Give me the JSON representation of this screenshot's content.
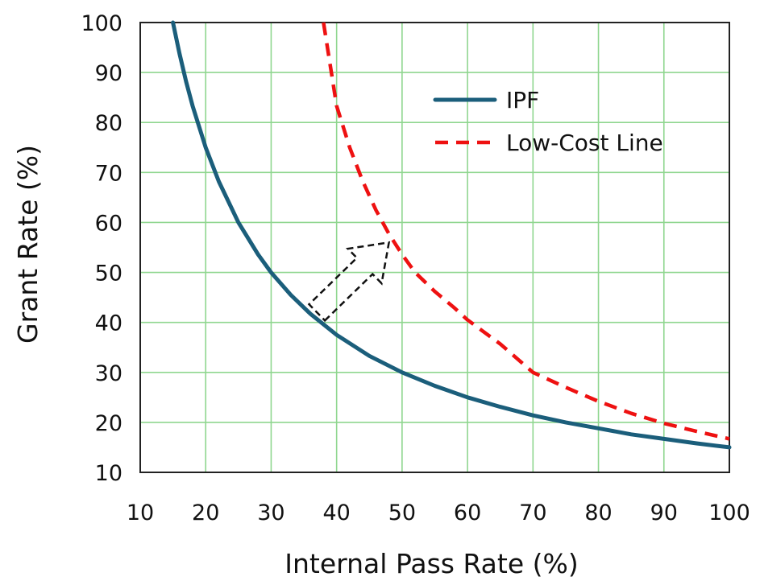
{
  "chart_data": {
    "type": "line",
    "title": "",
    "xlabel": "Internal Pass Rate (%)",
    "ylabel": "Grant Rate (%)",
    "xlim": [
      10,
      100
    ],
    "ylim": [
      10,
      100
    ],
    "x_ticks": [
      "10",
      "20",
      "30",
      "40",
      "50",
      "60",
      "70",
      "80",
      "90",
      "100"
    ],
    "y_ticks": [
      "10",
      "20",
      "30",
      "40",
      "50",
      "60",
      "70",
      "80",
      "90",
      "100"
    ],
    "grid": true,
    "legend_position": "top-right",
    "series": [
      {
        "name": "IPF",
        "color": "#1b5e7b",
        "style": "solid",
        "x": [
          15,
          16,
          17,
          18,
          20,
          22,
          25,
          28,
          30,
          33,
          36,
          40,
          45,
          50,
          55,
          60,
          65,
          70,
          75,
          80,
          85,
          90,
          95,
          100
        ],
        "y": [
          100,
          93.8,
          88.2,
          83.3,
          75,
          68.2,
          60,
          53.6,
          50,
          45.5,
          41.7,
          37.5,
          33.3,
          30,
          27.3,
          25,
          23.1,
          21.4,
          20,
          18.8,
          17.6,
          16.7,
          15.8,
          15
        ]
      },
      {
        "name": "Low-Cost Line",
        "color": "#ee1111",
        "style": "dashed",
        "x": [
          38,
          40,
          42,
          44,
          46,
          48,
          50,
          52,
          55,
          58,
          60,
          65,
          70,
          75,
          80,
          85,
          90,
          95,
          100
        ],
        "y": [
          100,
          83.3,
          75,
          68.2,
          62.5,
          57.7,
          53.6,
          50,
          46.2,
          42.9,
          40.5,
          35.7,
          30,
          27,
          24.2,
          21.8,
          19.8,
          18.2,
          16.7
        ]
      }
    ],
    "annotations": [
      {
        "type": "arrow",
        "style": "dashed-outline",
        "from": [
          37,
          42
        ],
        "to": [
          48,
          56
        ]
      }
    ]
  }
}
